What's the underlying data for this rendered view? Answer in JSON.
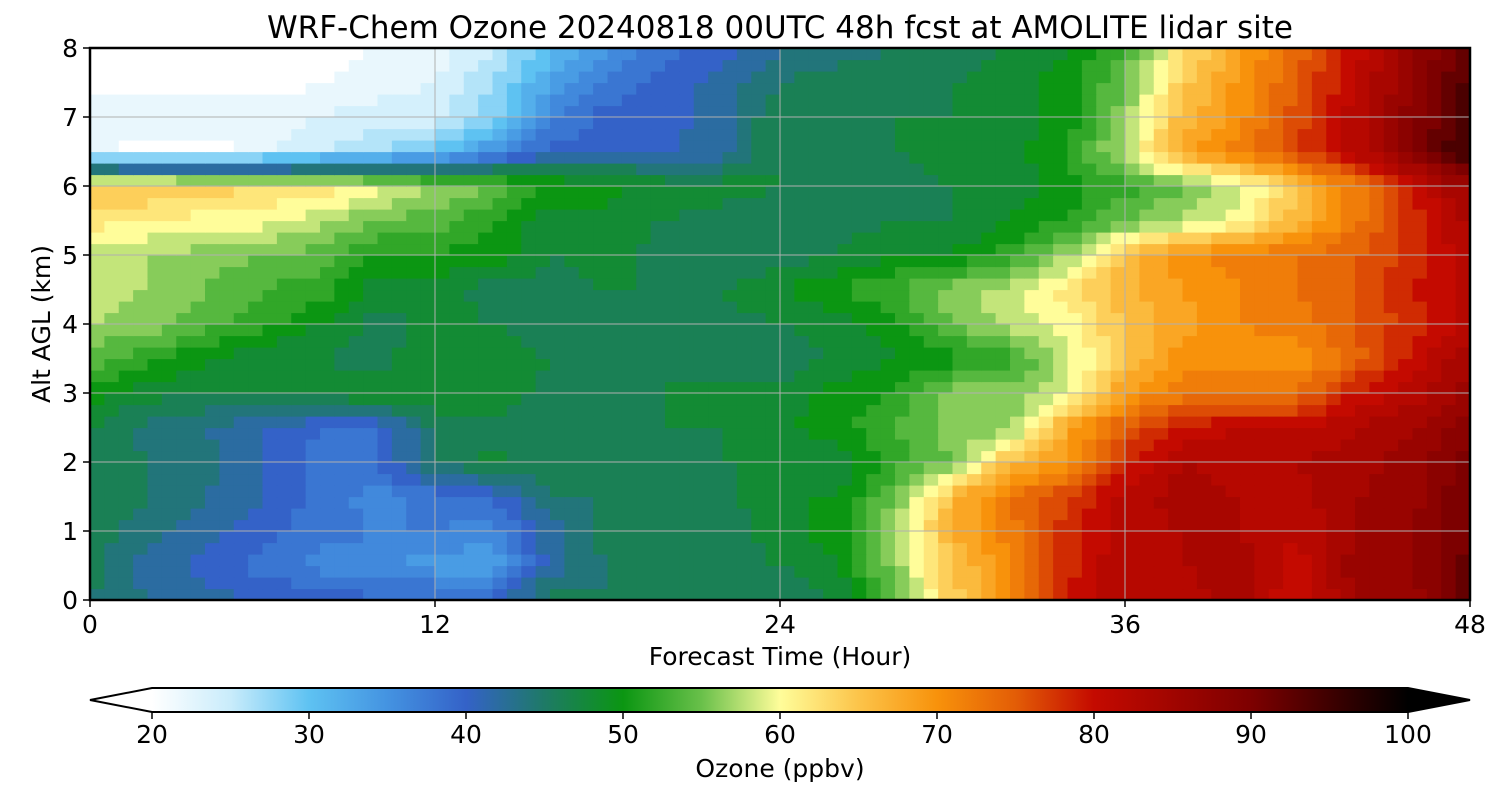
{
  "chart_data": {
    "type": "heatmap",
    "title": "WRF-Chem Ozone  20240818 00UTC 48h fcst at AMOLITE lidar site",
    "xlabel": "Forecast Time (Hour)",
    "ylabel": "Alt AGL (km)",
    "xlim": [
      0,
      48
    ],
    "ylim": [
      0,
      8
    ],
    "xticks": [
      "0",
      "12",
      "24",
      "36",
      "48"
    ],
    "yticks": [
      "0",
      "1",
      "2",
      "3",
      "4",
      "5",
      "6",
      "7",
      "8"
    ],
    "grid": true,
    "z_units": "ppbv",
    "colorbar": {
      "label": "Ozone  (ppbv)",
      "min": 20,
      "max": 100,
      "ticks": [
        "20",
        "30",
        "40",
        "50",
        "60",
        "70",
        "80",
        "90",
        "100"
      ],
      "extend": "both",
      "stops": [
        {
          "v": 20,
          "c": "#ffffff"
        },
        {
          "v": 25,
          "c": "#c9ecfb"
        },
        {
          "v": 30,
          "c": "#5ec2f2"
        },
        {
          "v": 35,
          "c": "#4493e1"
        },
        {
          "v": 40,
          "c": "#3462c8"
        },
        {
          "v": 45,
          "c": "#1e7a66"
        },
        {
          "v": 50,
          "c": "#0b9612"
        },
        {
          "v": 55,
          "c": "#69c04a"
        },
        {
          "v": 60,
          "c": "#fffd9a"
        },
        {
          "v": 65,
          "c": "#fcc44a"
        },
        {
          "v": 70,
          "c": "#f8920b"
        },
        {
          "v": 75,
          "c": "#e35d06"
        },
        {
          "v": 80,
          "c": "#c40a00"
        },
        {
          "v": 90,
          "c": "#7d0000"
        },
        {
          "v": 100,
          "c": "#000000"
        }
      ]
    },
    "x": [
      0,
      2,
      4,
      6,
      8,
      10,
      12,
      14,
      16,
      18,
      20,
      22,
      24,
      26,
      28,
      30,
      32,
      34,
      36,
      38,
      40,
      42,
      44,
      46,
      48
    ],
    "y": [
      0,
      0.5,
      1,
      1.5,
      2,
      2.5,
      3,
      3.5,
      4,
      4.5,
      5,
      5.5,
      6,
      6.5,
      7,
      7.5,
      8
    ],
    "z": [
      [
        45,
        43,
        42,
        41,
        41,
        39,
        40,
        40,
        46,
        45,
        45,
        45,
        45,
        47,
        55,
        64,
        70,
        79,
        83,
        82,
        84,
        79,
        85,
        86,
        92
      ],
      [
        46,
        42,
        40,
        38,
        36,
        35,
        34,
        33,
        42,
        45,
        46,
        46,
        47,
        49,
        56,
        65,
        70,
        78,
        83,
        83,
        84,
        80,
        86,
        87,
        92
      ],
      [
        46,
        44,
        42,
        40,
        38,
        37,
        37,
        36,
        42,
        46,
        46,
        46,
        48,
        50,
        57,
        67,
        72,
        78,
        82,
        83,
        83,
        81,
        85,
        87,
        91
      ],
      [
        47,
        45,
        43,
        41,
        38,
        36,
        38,
        39,
        45,
        45,
        46,
        46,
        49,
        49,
        55,
        66,
        73,
        77,
        82,
        84,
        83,
        82,
        85,
        86,
        91
      ],
      [
        47,
        45,
        44,
        41,
        38,
        39,
        45,
        48,
        46,
        45,
        46,
        47,
        47,
        47,
        52,
        55,
        66,
        69,
        78,
        83,
        82,
        83,
        84,
        86,
        90
      ],
      [
        47,
        44,
        43,
        41,
        39,
        39,
        45,
        46,
        45,
        45,
        47,
        47,
        49,
        50,
        53,
        56,
        56,
        68,
        75,
        80,
        81,
        81,
        83,
        85,
        88
      ],
      [
        50,
        48,
        47,
        48,
        48,
        49,
        49,
        49,
        46,
        45,
        47,
        49,
        47,
        50,
        51,
        56,
        56,
        59,
        69,
        72,
        72,
        73,
        79,
        82,
        86
      ],
      [
        54,
        52,
        49,
        47,
        47,
        46,
        49,
        48,
        47,
        47,
        46,
        45,
        46,
        47,
        49,
        50,
        52,
        58,
        65,
        70,
        70,
        69,
        74,
        80,
        85
      ],
      [
        57,
        56,
        54,
        52,
        49,
        46,
        48,
        47,
        46,
        47,
        46,
        46,
        47,
        48,
        50,
        55,
        58,
        60,
        65,
        68,
        71,
        72,
        75,
        78,
        82
      ],
      [
        58,
        57,
        55,
        53,
        52,
        48,
        48,
        46,
        46,
        47,
        47,
        47,
        49,
        51,
        53,
        56,
        58,
        62,
        67,
        69,
        71,
        73,
        75,
        79,
        82
      ],
      [
        58,
        57,
        56,
        55,
        54,
        51,
        51,
        50,
        47,
        48,
        46,
        45,
        46,
        47,
        49,
        49,
        52,
        57,
        65,
        70,
        72,
        73,
        75,
        78,
        82
      ],
      [
        62,
        61,
        60,
        60,
        58,
        55,
        54,
        51,
        48,
        48,
        47,
        46,
        46,
        46,
        47,
        47,
        49,
        51,
        55,
        57,
        60,
        66,
        72,
        78,
        84
      ],
      [
        65,
        65,
        64,
        63,
        62,
        60,
        57,
        55,
        51,
        50,
        48,
        48,
        47,
        46,
        46,
        47,
        48,
        50,
        52,
        55,
        58,
        65,
        72,
        79,
        86
      ],
      [
        22,
        20,
        20,
        22,
        25,
        27,
        30,
        35,
        40,
        41,
        41,
        42,
        47,
        46,
        47,
        48,
        48,
        51,
        58,
        68,
        72,
        77,
        82,
        89,
        96
      ],
      [
        22,
        22,
        22,
        22,
        23,
        24,
        24,
        28,
        36,
        40,
        40,
        42,
        47,
        46,
        47,
        47,
        48,
        50,
        56,
        66,
        70,
        76,
        82,
        88,
        95
      ],
      [
        20,
        20,
        20,
        20,
        21,
        22,
        23,
        27,
        33,
        37,
        40,
        42,
        45,
        46,
        46,
        47,
        48,
        50,
        55,
        64,
        70,
        75,
        81,
        87,
        94
      ],
      [
        20,
        20,
        20,
        20,
        20,
        21,
        22,
        25,
        30,
        35,
        38,
        40,
        43,
        44,
        45,
        46,
        47,
        49,
        53,
        62,
        68,
        74,
        80,
        86,
        93
      ]
    ]
  }
}
